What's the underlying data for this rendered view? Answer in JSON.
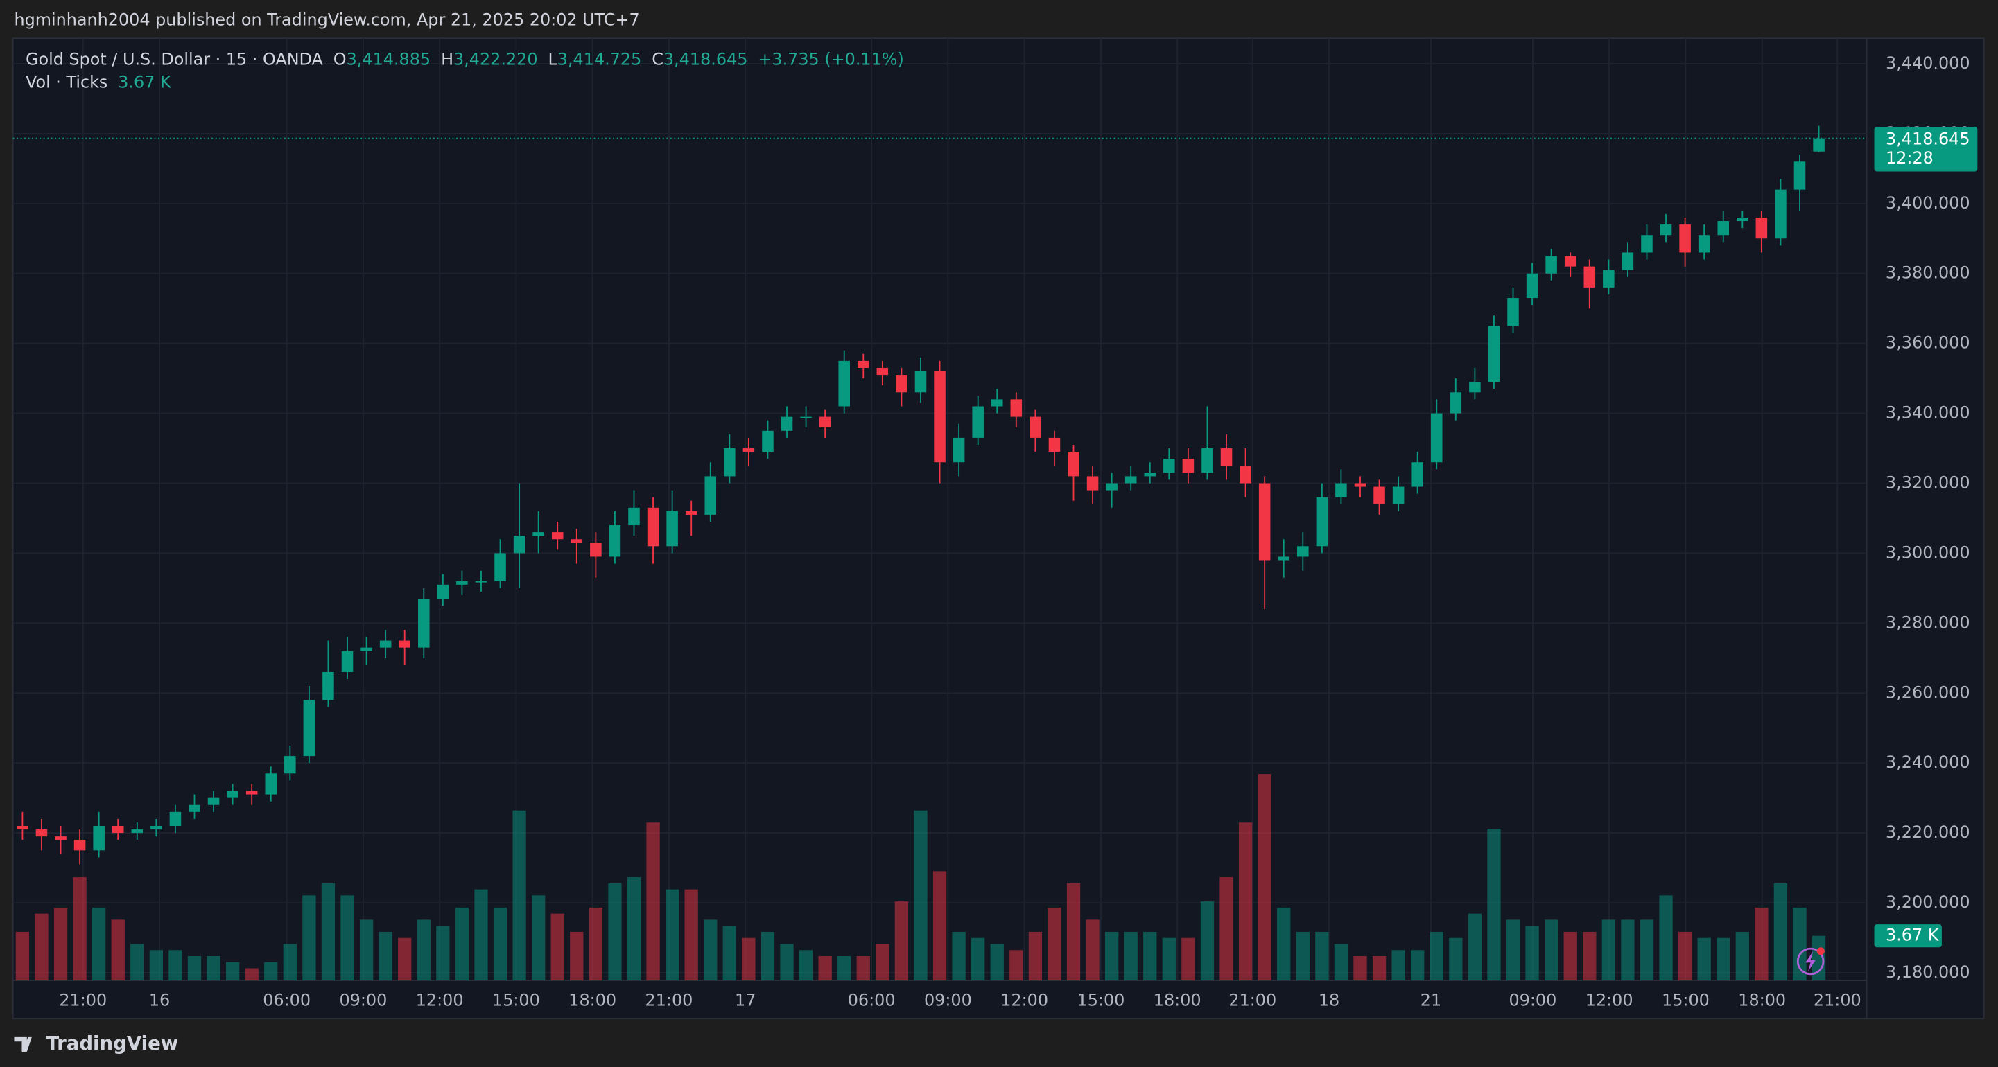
{
  "header": {
    "text": "hgminhanh2004 published on TradingView.com, Apr 21, 2025 20:02 UTC+7"
  },
  "footer": {
    "brand": "TradingView"
  },
  "chart_data": {
    "type": "candlestick",
    "title": "Gold Spot / U.S. Dollar · 15 · OANDA",
    "legend": {
      "o_label": "O",
      "o": "3,414.885",
      "h_label": "H",
      "h": "3,422.220",
      "l_label": "L",
      "l": "3,414.725",
      "c_label": "C",
      "c": "3,418.645",
      "change": "+3.735 (+0.11%)"
    },
    "volume_title": "Vol · Ticks",
    "volume_legend": "3.67 K",
    "open": [
      3222,
      3221,
      3219,
      3218,
      3215,
      3222,
      3220,
      3221,
      3222,
      3226,
      3228,
      3230,
      3232,
      3231,
      3237,
      3242,
      3258,
      3266,
      3272,
      3273,
      3275,
      3273,
      3287,
      3291,
      3292,
      3292,
      3300,
      3305,
      3306,
      3304,
      3303,
      3299,
      3308,
      3313,
      3302,
      3312,
      3311,
      3322,
      3330,
      3329,
      3335,
      3339,
      3339,
      3342,
      3355,
      3353,
      3351,
      3346,
      3352,
      3326,
      3333,
      3342,
      3344,
      3339,
      3333,
      3329,
      3322,
      3318,
      3320,
      3322,
      3323,
      3327,
      3323,
      3330,
      3325,
      3320,
      3298,
      3299,
      3302,
      3316,
      3320,
      3319,
      3314,
      3319,
      3326,
      3340,
      3346,
      3349,
      3365,
      3373,
      3380,
      3385,
      3382,
      3376,
      3381,
      3386,
      3391,
      3394,
      3386,
      3391,
      3395,
      3396,
      3390,
      3404,
      3414.885
    ],
    "high": [
      3226,
      3224,
      3222,
      3221,
      3226,
      3224,
      3223,
      3224,
      3228,
      3231,
      3232,
      3234,
      3234,
      3239,
      3245,
      3262,
      3275,
      3276,
      3276,
      3278,
      3278,
      3290,
      3294,
      3295,
      3295,
      3304,
      3320,
      3312,
      3309,
      3307,
      3306,
      3312,
      3318,
      3316,
      3318,
      3315,
      3326,
      3334,
      3333,
      3338,
      3342,
      3342,
      3341,
      3358,
      3357,
      3355,
      3353,
      3356,
      3355,
      3337,
      3345,
      3347,
      3346,
      3341,
      3335,
      3331,
      3325,
      3323,
      3325,
      3326,
      3330,
      3330,
      3342,
      3334,
      3330,
      3322,
      3304,
      3306,
      3320,
      3324,
      3322,
      3321,
      3322,
      3329,
      3344,
      3350,
      3353,
      3368,
      3376,
      3383,
      3387,
      3386,
      3384,
      3384,
      3389,
      3394,
      3397,
      3396,
      3394,
      3398,
      3398,
      3398,
      3407,
      3414,
      3422.22
    ],
    "low": [
      3218,
      3215,
      3214,
      3211,
      3213,
      3218,
      3218,
      3219,
      3220,
      3224,
      3226,
      3228,
      3228,
      3229,
      3235,
      3240,
      3256,
      3264,
      3268,
      3270,
      3268,
      3270,
      3285,
      3288,
      3289,
      3290,
      3290,
      3300,
      3301,
      3297,
      3293,
      3297,
      3305,
      3297,
      3300,
      3305,
      3309,
      3320,
      3325,
      3327,
      3333,
      3336,
      3333,
      3340,
      3350,
      3348,
      3342,
      3343,
      3320,
      3322,
      3331,
      3340,
      3336,
      3329,
      3325,
      3315,
      3314,
      3313,
      3318,
      3320,
      3321,
      3320,
      3321,
      3321,
      3316,
      3284,
      3293,
      3295,
      3300,
      3314,
      3316,
      3311,
      3312,
      3317,
      3324,
      3338,
      3344,
      3347,
      3363,
      3371,
      3378,
      3379,
      3370,
      3374,
      3379,
      3384,
      3389,
      3382,
      3384,
      3389,
      3393,
      3386,
      3388,
      3398,
      3414.725
    ],
    "close": [
      3221,
      3219,
      3218,
      3215,
      3222,
      3220,
      3221,
      3222,
      3226,
      3228,
      3230,
      3232,
      3231,
      3237,
      3242,
      3258,
      3266,
      3272,
      3273,
      3275,
      3273,
      3287,
      3291,
      3292,
      3292,
      3300,
      3305,
      3306,
      3304,
      3303,
      3299,
      3308,
      3313,
      3302,
      3312,
      3311,
      3322,
      3330,
      3329,
      3335,
      3339,
      3339,
      3336,
      3355,
      3353,
      3351,
      3346,
      3352,
      3326,
      3333,
      3342,
      3344,
      3339,
      3333,
      3329,
      3322,
      3318,
      3320,
      3322,
      3323,
      3327,
      3323,
      3330,
      3325,
      3320,
      3298,
      3299,
      3302,
      3316,
      3320,
      3319,
      3314,
      3319,
      3326,
      3340,
      3346,
      3349,
      3365,
      3373,
      3380,
      3385,
      3382,
      3376,
      3381,
      3386,
      3391,
      3394,
      3386,
      3391,
      3395,
      3396,
      3390,
      3404,
      3412,
      3418.645
    ],
    "volume": [
      4,
      5.5,
      6,
      8.5,
      6,
      5,
      3,
      2.5,
      2.5,
      2,
      2,
      1.5,
      1,
      1.5,
      3,
      7,
      8,
      7,
      5,
      4,
      3.5,
      5,
      4.5,
      6,
      7.5,
      6,
      14,
      7,
      5.5,
      4,
      6,
      8,
      8.5,
      13,
      7.5,
      7.5,
      5,
      4.5,
      3.5,
      4,
      3,
      2.5,
      2,
      2,
      2,
      3,
      6.5,
      14,
      9,
      4,
      3.5,
      3,
      2.5,
      4,
      6,
      8,
      5,
      4,
      4,
      4,
      3.5,
      3.5,
      6.5,
      8.5,
      13,
      17,
      6,
      4,
      4,
      3,
      2,
      2,
      2.5,
      2.5,
      4,
      3.5,
      5.5,
      12.5,
      5,
      4.5,
      5,
      4,
      4,
      5,
      5,
      5,
      7,
      4,
      3.5,
      3.5,
      4,
      6,
      8,
      6,
      3.67
    ],
    "last_price": {
      "value": 3418.645,
      "label": "3,418.645"
    },
    "countdown": "12:28",
    "up_color": "#089981",
    "down_color": "#f23645",
    "grid": true,
    "xlim": [
      0,
      97
    ],
    "xticks": [
      {
        "value": 3.67,
        "label": "21:00"
      },
      {
        "value": 7.67,
        "label": "16"
      },
      {
        "value": 14.33,
        "label": "06:00"
      },
      {
        "value": 18.33,
        "label": "09:00"
      },
      {
        "value": 22.33,
        "label": "12:00"
      },
      {
        "value": 26.33,
        "label": "15:00"
      },
      {
        "value": 30.33,
        "label": "18:00"
      },
      {
        "value": 34.33,
        "label": "21:00"
      },
      {
        "value": 38.33,
        "label": "17"
      },
      {
        "value": 44.93,
        "label": "06:00"
      },
      {
        "value": 48.93,
        "label": "09:00"
      },
      {
        "value": 52.93,
        "label": "12:00"
      },
      {
        "value": 56.93,
        "label": "15:00"
      },
      {
        "value": 60.93,
        "label": "18:00"
      },
      {
        "value": 64.87,
        "label": "21:00"
      },
      {
        "value": 68.87,
        "label": "18"
      },
      {
        "value": 74.2,
        "label": "21"
      },
      {
        "value": 79.53,
        "label": "09:00"
      },
      {
        "value": 83.53,
        "label": "12:00"
      },
      {
        "value": 87.53,
        "label": "15:00"
      },
      {
        "value": 91.53,
        "label": "18:00"
      },
      {
        "value": 95.47,
        "label": "21:00"
      }
    ],
    "ylim": [
      3177.8,
      3447.3
    ],
    "yticks": [
      {
        "value": 3180,
        "label": "3,180.000"
      },
      {
        "value": 3200,
        "label": "3,200.000"
      },
      {
        "value": 3220,
        "label": "3,220.000"
      },
      {
        "value": 3240,
        "label": "3,240.000"
      },
      {
        "value": 3260,
        "label": "3,260.000"
      },
      {
        "value": 3280,
        "label": "3,280.000"
      },
      {
        "value": 3300,
        "label": "3,300.000"
      },
      {
        "value": 3320,
        "label": "3,320.000"
      },
      {
        "value": 3340,
        "label": "3,340.000"
      },
      {
        "value": 3360,
        "label": "3,360.000"
      },
      {
        "value": 3380,
        "label": "3,380.000"
      },
      {
        "value": 3400,
        "label": "3,400.000"
      },
      {
        "value": 3420,
        "label": "3,420.000"
      },
      {
        "value": 3440,
        "label": "3,440.000"
      }
    ],
    "volume_lim": [
      0,
      77.6
    ]
  }
}
